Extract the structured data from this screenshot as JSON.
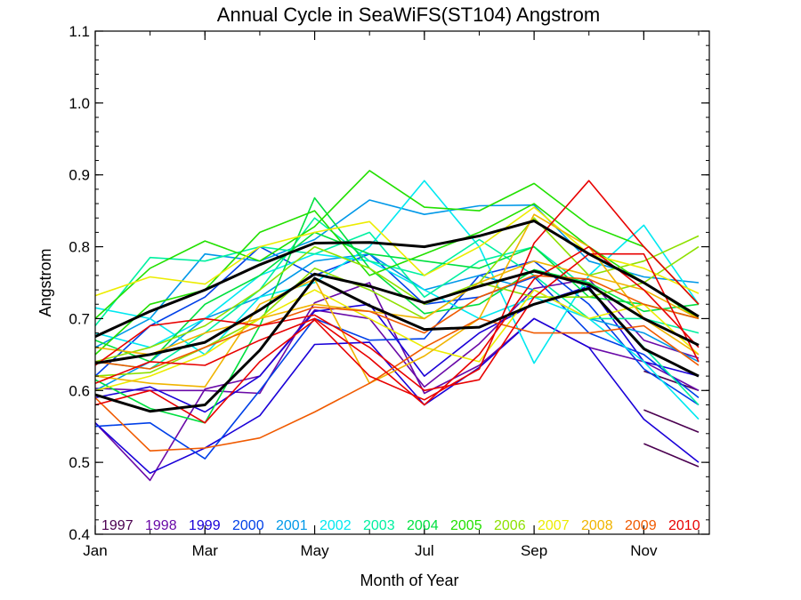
{
  "chart_data": {
    "type": "line",
    "title": "Annual Cycle in SeaWiFS(ST104) Angstrom",
    "xlabel": "Month of Year",
    "ylabel": "Angstrom",
    "xlim": [
      1,
      12
    ],
    "ylim": [
      0.4,
      1.1
    ],
    "x_ticks": [
      {
        "value": 1,
        "label": "Jan"
      },
      {
        "value": 3,
        "label": "Mar"
      },
      {
        "value": 5,
        "label": "May"
      },
      {
        "value": 7,
        "label": "Jul"
      },
      {
        "value": 9,
        "label": "Sep"
      },
      {
        "value": 11,
        "label": "Nov"
      }
    ],
    "y_ticks": [
      {
        "value": 0.4,
        "label": "0.4"
      },
      {
        "value": 0.5,
        "label": "0.5"
      },
      {
        "value": 0.6,
        "label": "0.6"
      },
      {
        "value": 0.7,
        "label": "0.7"
      },
      {
        "value": 0.8,
        "label": "0.8"
      },
      {
        "value": 0.9,
        "label": "0.9"
      },
      {
        "value": 1.0,
        "label": "1.0"
      },
      {
        "value": 1.1,
        "label": "1.1"
      }
    ],
    "legend_position": "bottom",
    "grid": false,
    "x": [
      1,
      2,
      3,
      4,
      5,
      6,
      7,
      8,
      9,
      10,
      11,
      12
    ],
    "series": [
      {
        "name": "1997",
        "color": "#4b0050",
        "values": [
          null,
          null,
          null,
          null,
          null,
          null,
          null,
          null,
          null,
          null,
          0.627,
          0.6
        ]
      },
      {
        "name": "1997",
        "color": "#4b0050",
        "values": [
          null,
          null,
          null,
          null,
          null,
          null,
          null,
          null,
          null,
          null,
          0.573,
          0.542
        ]
      },
      {
        "name": "1997",
        "color": "#4b0050",
        "values": [
          null,
          null,
          null,
          null,
          null,
          null,
          null,
          null,
          null,
          null,
          0.526,
          0.494
        ]
      },
      {
        "name": "1998",
        "color": "#6a0aa8",
        "values": [
          0.555,
          0.475,
          0.602,
          0.62,
          0.712,
          0.7,
          0.605,
          0.665,
          0.742,
          0.755,
          0.67,
          0.645
        ]
      },
      {
        "name": "1998",
        "color": "#6a0aa8",
        "values": [
          0.603,
          0.6,
          0.6,
          0.596,
          0.722,
          0.75,
          0.596,
          0.635,
          0.7,
          0.66,
          0.64,
          0.6
        ]
      },
      {
        "name": "1999",
        "color": "#1a00d8",
        "values": [
          0.555,
          0.485,
          0.52,
          0.565,
          0.664,
          0.667,
          0.58,
          0.632,
          0.7,
          0.66,
          0.56,
          0.5
        ]
      },
      {
        "name": "1999",
        "color": "#1a00d8",
        "values": [
          0.59,
          0.605,
          0.57,
          0.62,
          0.71,
          0.72,
          0.62,
          0.68,
          0.72,
          0.745,
          0.64,
          0.62
        ]
      },
      {
        "name": "2000",
        "color": "#0040e8",
        "values": [
          0.55,
          0.555,
          0.505,
          0.6,
          0.7,
          0.67,
          0.672,
          0.76,
          0.78,
          0.72,
          0.63,
          0.58
        ]
      },
      {
        "name": "2000",
        "color": "#0040e8",
        "values": [
          0.62,
          0.69,
          0.73,
          0.8,
          0.76,
          0.79,
          0.72,
          0.73,
          0.758,
          0.68,
          0.65,
          0.59
        ]
      },
      {
        "name": "2001",
        "color": "#0098e8",
        "values": [
          0.66,
          0.7,
          0.79,
          0.78,
          0.81,
          0.865,
          0.845,
          0.857,
          0.858,
          0.78,
          0.758,
          0.75
        ]
      },
      {
        "name": "2001",
        "color": "#0098e8",
        "values": [
          0.6,
          0.64,
          0.7,
          0.73,
          0.78,
          0.79,
          0.74,
          0.76,
          0.74,
          0.7,
          0.68,
          0.64
        ]
      },
      {
        "name": "2002",
        "color": "#00e8f0",
        "values": [
          0.715,
          0.7,
          0.65,
          0.73,
          0.75,
          0.8,
          0.892,
          0.8,
          0.638,
          0.76,
          0.83,
          0.72
        ]
      },
      {
        "name": "2002",
        "color": "#00e8f0",
        "values": [
          0.68,
          0.66,
          0.7,
          0.76,
          0.79,
          0.78,
          0.74,
          0.7,
          0.73,
          0.7,
          0.64,
          0.56
        ]
      },
      {
        "name": "2003",
        "color": "#00f0a0",
        "values": [
          0.69,
          0.785,
          0.78,
          0.8,
          0.79,
          0.82,
          0.73,
          0.78,
          0.8,
          0.74,
          0.66,
          0.58
        ]
      },
      {
        "name": "2003",
        "color": "#00f0a0",
        "values": [
          0.64,
          0.63,
          0.68,
          0.74,
          0.84,
          0.78,
          0.76,
          0.81,
          0.76,
          0.7,
          0.7,
          0.68
        ]
      },
      {
        "name": "2004",
        "color": "#00e040",
        "values": [
          0.615,
          0.575,
          0.555,
          0.69,
          0.868,
          0.77,
          0.707,
          0.72,
          0.768,
          0.75,
          0.71,
          0.72
        ]
      },
      {
        "name": "2004",
        "color": "#00e040",
        "values": [
          0.67,
          0.64,
          0.72,
          0.76,
          0.82,
          0.79,
          0.78,
          0.77,
          0.8,
          0.73,
          0.72,
          0.7
        ]
      },
      {
        "name": "2005",
        "color": "#22e000",
        "values": [
          0.7,
          0.77,
          0.808,
          0.78,
          0.828,
          0.906,
          0.855,
          0.85,
          0.888,
          0.83,
          0.8,
          0.72
        ]
      },
      {
        "name": "2005",
        "color": "#22e000",
        "values": [
          0.65,
          0.72,
          0.74,
          0.82,
          0.85,
          0.76,
          0.79,
          0.82,
          0.86,
          0.8,
          0.75,
          0.7
        ]
      },
      {
        "name": "2006",
        "color": "#8ee000",
        "values": [
          0.64,
          0.66,
          0.69,
          0.74,
          0.8,
          0.77,
          0.72,
          0.75,
          0.84,
          0.76,
          0.78,
          0.815
        ]
      },
      {
        "name": "2006",
        "color": "#8ee000",
        "values": [
          0.62,
          0.625,
          0.66,
          0.7,
          0.77,
          0.74,
          0.7,
          0.75,
          0.73,
          0.73,
          0.75,
          0.8
        ]
      },
      {
        "name": "2007",
        "color": "#ecec00",
        "values": [
          0.732,
          0.758,
          0.748,
          0.8,
          0.82,
          0.835,
          0.76,
          0.8,
          0.855,
          0.79,
          0.77,
          0.735
        ]
      },
      {
        "name": "2007",
        "color": "#ecec00",
        "values": [
          0.6,
          0.62,
          0.65,
          0.7,
          0.74,
          0.7,
          0.66,
          0.64,
          0.74,
          0.7,
          0.72,
          0.65
        ]
      },
      {
        "name": "2008",
        "color": "#f0b400",
        "values": [
          0.62,
          0.61,
          0.605,
          0.72,
          0.755,
          0.61,
          0.648,
          0.7,
          0.845,
          0.8,
          0.7,
          0.65
        ]
      },
      {
        "name": "2008",
        "color": "#f0b400",
        "values": [
          0.66,
          0.65,
          0.68,
          0.7,
          0.72,
          0.71,
          0.7,
          0.75,
          0.78,
          0.76,
          0.74,
          0.7
        ]
      },
      {
        "name": "2009",
        "color": "#f05a00",
        "values": [
          0.59,
          0.516,
          0.52,
          0.534,
          0.57,
          0.61,
          0.66,
          0.7,
          0.68,
          0.68,
          0.69,
          0.635
        ]
      },
      {
        "name": "2009",
        "color": "#f05a00",
        "values": [
          0.64,
          0.63,
          0.66,
          0.69,
          0.716,
          0.71,
          0.68,
          0.73,
          0.76,
          0.755,
          0.72,
          0.7
        ]
      },
      {
        "name": "2010",
        "color": "#e80000",
        "values": [
          0.58,
          0.6,
          0.555,
          0.64,
          0.698,
          0.62,
          0.587,
          0.63,
          0.805,
          0.892,
          0.8,
          0.72
        ]
      },
      {
        "name": "2010",
        "color": "#e80000",
        "values": [
          0.635,
          0.69,
          0.7,
          0.69,
          0.705,
          0.66,
          0.6,
          0.615,
          0.73,
          0.79,
          0.79,
          0.64
        ]
      },
      {
        "name": "2010",
        "color": "#e80000",
        "values": [
          0.61,
          0.64,
          0.635,
          0.67,
          0.7,
          0.645,
          0.58,
          0.65,
          0.755,
          0.8,
          0.74,
          0.66
        ]
      },
      {
        "name": "",
        "color": "#000000",
        "width": 3,
        "values": [
          0.675,
          0.71,
          0.74,
          0.775,
          0.805,
          0.806,
          0.8,
          0.815,
          0.836,
          0.79,
          0.75,
          0.703
        ]
      },
      {
        "name": "",
        "color": "#000000",
        "width": 3,
        "values": [
          0.638,
          0.65,
          0.667,
          0.712,
          0.762,
          0.745,
          0.722,
          0.745,
          0.766,
          0.747,
          0.7,
          0.663
        ]
      },
      {
        "name": "",
        "color": "#000000",
        "width": 3,
        "values": [
          0.594,
          0.571,
          0.58,
          0.656,
          0.756,
          0.718,
          0.685,
          0.688,
          0.72,
          0.742,
          0.658,
          0.62
        ]
      }
    ],
    "legend": [
      {
        "label": "1997",
        "color": "#4b0050"
      },
      {
        "label": "1998",
        "color": "#6a0aa8"
      },
      {
        "label": "1999",
        "color": "#1a00d8"
      },
      {
        "label": "2000",
        "color": "#0040e8"
      },
      {
        "label": "2001",
        "color": "#0098e8"
      },
      {
        "label": "2002",
        "color": "#00e8f0"
      },
      {
        "label": "2003",
        "color": "#00f0a0"
      },
      {
        "label": "2004",
        "color": "#00e040"
      },
      {
        "label": "2005",
        "color": "#22e000"
      },
      {
        "label": "2006",
        "color": "#8ee000"
      },
      {
        "label": "2007",
        "color": "#ecec00"
      },
      {
        "label": "2008",
        "color": "#f0b400"
      },
      {
        "label": "2009",
        "color": "#f05a00"
      },
      {
        "label": "2010",
        "color": "#e80000"
      }
    ]
  }
}
